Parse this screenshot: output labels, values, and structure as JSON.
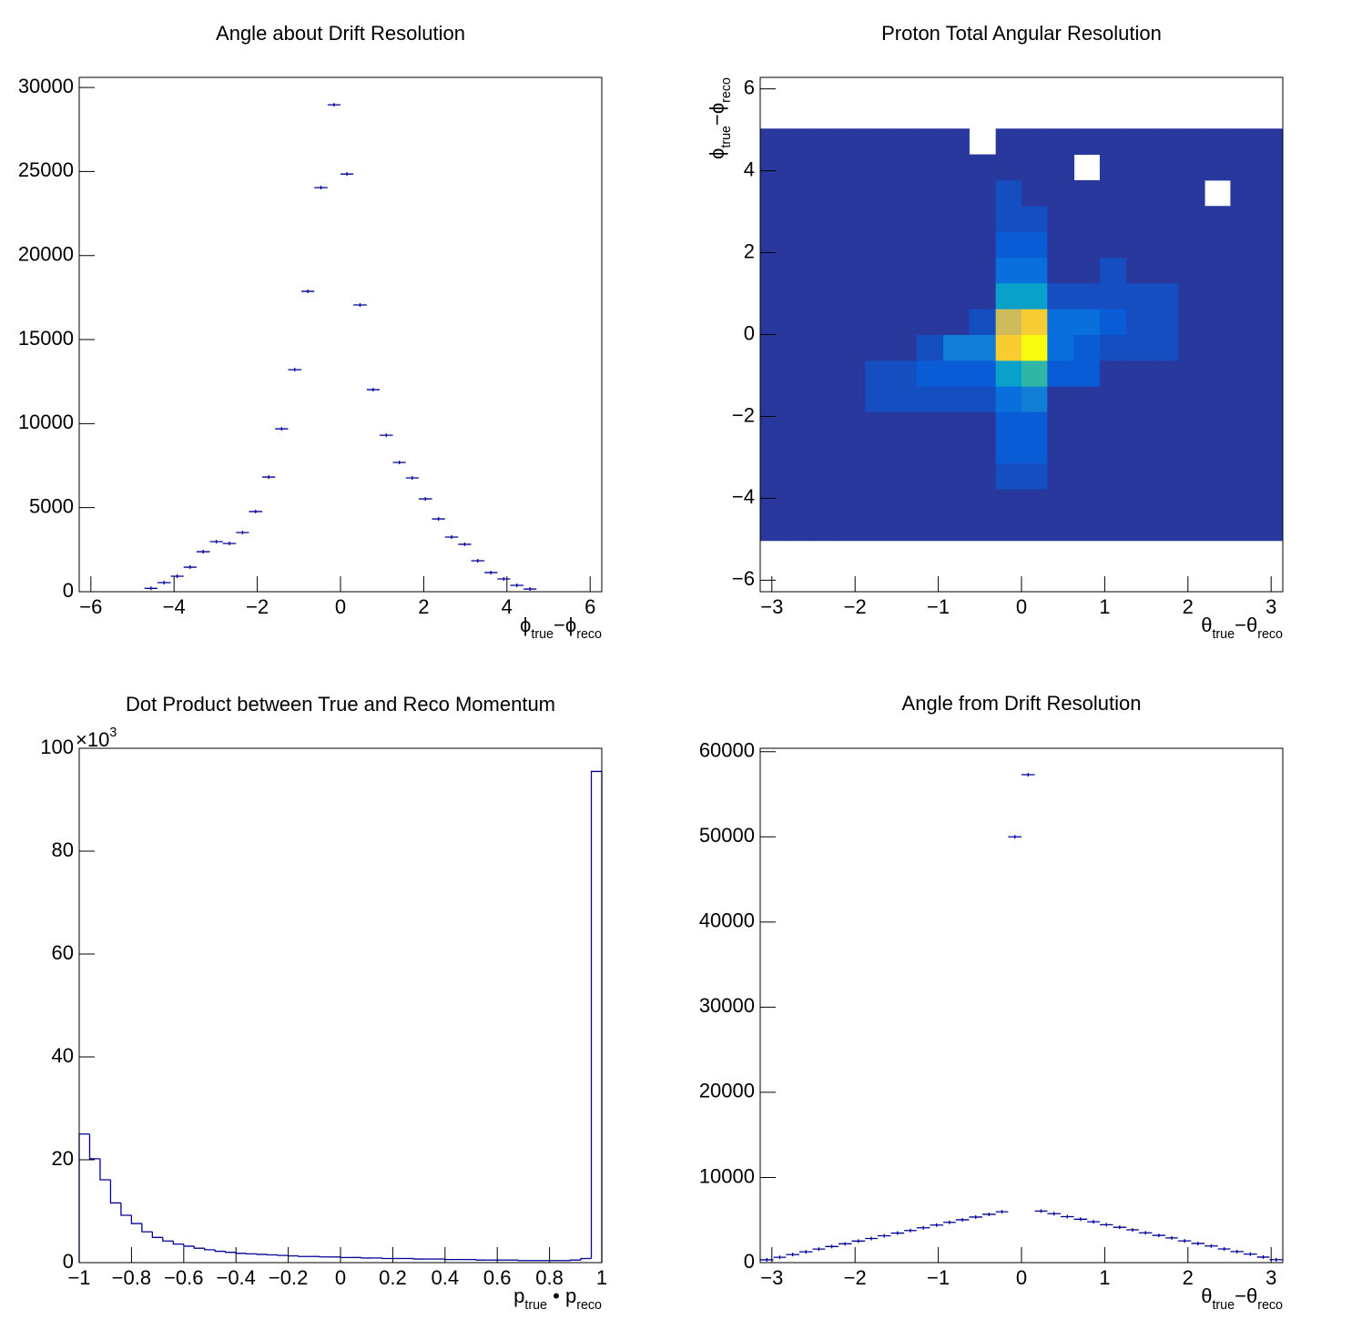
{
  "chart_data": [
    {
      "type": "histogram",
      "style": "markers",
      "title": "Angle about Drift Resolution",
      "bins": [
        -4.71,
        -4.4,
        -4.08,
        -3.77,
        -3.46,
        -3.14,
        -2.83,
        -2.51,
        -2.2,
        -1.88,
        -1.57,
        -1.26,
        -0.94,
        -0.63,
        -0.31,
        0,
        0.31,
        0.63,
        0.94,
        1.26,
        1.57,
        1.88,
        2.2,
        2.51,
        2.83,
        3.14,
        3.46,
        3.77,
        4.08,
        4.4,
        4.71
      ],
      "values": [
        200,
        540,
        920,
        1460,
        2380,
        2980,
        2870,
        3520,
        4770,
        6820,
        9690,
        13210,
        17870,
        24040,
        28970,
        24850,
        17060,
        12020,
        9310,
        7690,
        6770,
        5520,
        4330,
        3250,
        2820,
        1840,
        1140,
        760,
        380,
        160
      ],
      "color": "#000099",
      "xlim": [
        -6.28,
        6.28
      ],
      "ylim": [
        0,
        30600
      ],
      "xticks": [
        {
          "value": -6,
          "label": "−6"
        },
        {
          "value": -4,
          "label": "−4"
        },
        {
          "value": -2,
          "label": "−2"
        },
        0,
        2,
        4,
        6
      ],
      "yticks": [
        0,
        5000,
        10000,
        15000,
        20000,
        25000,
        30000
      ],
      "xlabel": [
        {
          "text": "ϕ"
        },
        {
          "text": "true",
          "sub": true
        },
        {
          "text": "−ϕ"
        },
        {
          "text": "reco",
          "sub": true
        }
      ]
    },
    {
      "type": "heatmap",
      "title": "Proton Total Angular Resolution",
      "xbins": [
        -3.14,
        -2.83,
        -2.51,
        -2.2,
        -1.88,
        -1.57,
        -1.26,
        -0.94,
        -0.63,
        -0.31,
        0,
        0.31,
        0.63,
        0.94,
        1.26,
        1.57,
        1.88,
        2.2,
        2.51,
        2.83,
        3.14
      ],
      "ybins": [
        -6.28,
        -5.65,
        -5.03,
        -4.4,
        -3.77,
        -3.14,
        -2.51,
        -1.88,
        -1.26,
        -0.63,
        0,
        0.63,
        1.26,
        1.88,
        2.51,
        3.14,
        3.77,
        4.4,
        5.03,
        5.65,
        6.28
      ],
      "z": [
        [
          0,
          0,
          0,
          0,
          0,
          0,
          0,
          0,
          0,
          0,
          0,
          0,
          0,
          0,
          0,
          0,
          0,
          0,
          0,
          0
        ],
        [
          0,
          0,
          0,
          0,
          0,
          0,
          0,
          0,
          0,
          0,
          0,
          0,
          0,
          0,
          0,
          0,
          0,
          0,
          0,
          0
        ],
        [
          3,
          3,
          3,
          3,
          3,
          3,
          3,
          3,
          3,
          3,
          3,
          3,
          3,
          3,
          3,
          3,
          3,
          3,
          3,
          3
        ],
        [
          3,
          3,
          3,
          3,
          3,
          3,
          3,
          3,
          3,
          3,
          3,
          3,
          3,
          3,
          3,
          3,
          3,
          3,
          3,
          3
        ],
        [
          3,
          3,
          3,
          3,
          3,
          3,
          3,
          3,
          3,
          8,
          8,
          3,
          3,
          3,
          3,
          3,
          3,
          3,
          3,
          3
        ],
        [
          3,
          3,
          3,
          3,
          3,
          3,
          3,
          3,
          3,
          11,
          11,
          3,
          3,
          3,
          3,
          3,
          3,
          3,
          3,
          3
        ],
        [
          3,
          3,
          3,
          3,
          3,
          3,
          3,
          3,
          3,
          11,
          11,
          3,
          3,
          3,
          3,
          3,
          3,
          3,
          3,
          3
        ],
        [
          3,
          3,
          3,
          3,
          8,
          8,
          8,
          8,
          8,
          17,
          22,
          3,
          3,
          3,
          3,
          3,
          3,
          3,
          3,
          3
        ],
        [
          3,
          3,
          3,
          3,
          8,
          8,
          11,
          11,
          11,
          35,
          48,
          11,
          11,
          3,
          3,
          3,
          3,
          3,
          3,
          3
        ],
        [
          3,
          3,
          3,
          3,
          3,
          3,
          8,
          22,
          22,
          86,
          100,
          17,
          11,
          8,
          8,
          8,
          3,
          3,
          3,
          3
        ],
        [
          3,
          3,
          3,
          3,
          3,
          3,
          3,
          3,
          8,
          73,
          86,
          17,
          17,
          11,
          8,
          8,
          3,
          3,
          3,
          3
        ],
        [
          3,
          3,
          3,
          3,
          3,
          3,
          3,
          3,
          3,
          35,
          35,
          8,
          8,
          8,
          8,
          8,
          3,
          3,
          3,
          3
        ],
        [
          3,
          3,
          3,
          3,
          3,
          3,
          3,
          3,
          3,
          17,
          17,
          3,
          3,
          8,
          3,
          3,
          3,
          3,
          3,
          3
        ],
        [
          3,
          3,
          3,
          3,
          3,
          3,
          3,
          3,
          3,
          11,
          11,
          3,
          3,
          3,
          3,
          3,
          3,
          3,
          3,
          3
        ],
        [
          3,
          3,
          3,
          3,
          3,
          3,
          3,
          3,
          3,
          8,
          8,
          3,
          3,
          3,
          3,
          3,
          3,
          3,
          3,
          3
        ],
        [
          3,
          3,
          3,
          3,
          3,
          3,
          3,
          3,
          3,
          8,
          3,
          3,
          3,
          3,
          3,
          3,
          3,
          0,
          3,
          3
        ],
        [
          3,
          3,
          3,
          3,
          3,
          3,
          3,
          3,
          3,
          3,
          3,
          3,
          0,
          3,
          3,
          3,
          3,
          3,
          3,
          3
        ],
        [
          3,
          3,
          3,
          3,
          3,
          3,
          3,
          3,
          0,
          3,
          3,
          3,
          3,
          3,
          3,
          3,
          3,
          3,
          3,
          3
        ],
        [
          0,
          0,
          0,
          0,
          0,
          0,
          0,
          0,
          0,
          0,
          0,
          0,
          0,
          0,
          0,
          0,
          0,
          0,
          0,
          0
        ],
        [
          0,
          0,
          0,
          0,
          0,
          0,
          0,
          0,
          0,
          0,
          0,
          0,
          0,
          0,
          0,
          0,
          0,
          0,
          0,
          0
        ]
      ],
      "palette": [
        "#352a87",
        "#0363e1",
        "#1485d4",
        "#06a7c6",
        "#38b99e",
        "#92bf73",
        "#d9ba56",
        "#fcce2e",
        "#f9fb0e"
      ],
      "xlim": [
        -3.14,
        3.14
      ],
      "ylim": [
        -6.28,
        6.28
      ],
      "xticks": [
        {
          "value": -3,
          "label": "−3"
        },
        {
          "value": -2,
          "label": "−2"
        },
        {
          "value": -1,
          "label": "−1"
        },
        0,
        1,
        2,
        3
      ],
      "yticks": [
        {
          "value": -6,
          "label": "−6"
        },
        {
          "value": -4,
          "label": "−4"
        },
        {
          "value": -2,
          "label": "−2"
        },
        0,
        2,
        4,
        6
      ],
      "xlabel": [
        {
          "text": "θ"
        },
        {
          "text": "true",
          "sub": true
        },
        {
          "text": "−θ"
        },
        {
          "text": "reco",
          "sub": true
        }
      ],
      "ylabel": [
        {
          "text": "ϕ"
        },
        {
          "text": "true",
          "sub": true
        },
        {
          "text": "−ϕ"
        },
        {
          "text": "reco",
          "sub": true
        }
      ]
    },
    {
      "type": "histogram",
      "style": "step",
      "title": "Dot Product between True and Reco Momentum",
      "bins": [
        -1,
        -0.96,
        -0.92,
        -0.88,
        -0.84,
        -0.8,
        -0.76,
        -0.72,
        -0.68,
        -0.64,
        -0.6,
        -0.56,
        -0.52,
        -0.48,
        -0.44,
        -0.4,
        -0.36,
        -0.32,
        -0.28,
        -0.24,
        -0.2,
        -0.16,
        -0.12,
        -0.08,
        -0.04,
        0,
        0.04,
        0.08,
        0.12,
        0.16,
        0.2,
        0.24,
        0.28,
        0.32,
        0.36,
        0.4,
        0.44,
        0.48,
        0.52,
        0.56,
        0.6,
        0.64,
        0.68,
        0.72,
        0.76,
        0.8,
        0.84,
        0.88,
        0.92,
        0.96,
        1
      ],
      "values": [
        25.0,
        20.2,
        16.1,
        11.6,
        9.2,
        7.6,
        6.0,
        4.9,
        4.2,
        3.6,
        3.2,
        2.8,
        2.5,
        2.2,
        2.0,
        1.8,
        1.7,
        1.6,
        1.5,
        1.4,
        1.3,
        1.2,
        1.2,
        1.1,
        1.1,
        1.0,
        1.0,
        0.9,
        0.9,
        0.8,
        0.8,
        0.8,
        0.7,
        0.7,
        0.7,
        0.6,
        0.6,
        0.6,
        0.5,
        0.5,
        0.5,
        0.5,
        0.4,
        0.4,
        0.4,
        0.4,
        0.4,
        0.5,
        0.8,
        95.5
      ],
      "color": "#000099",
      "xlim": [
        -1,
        1
      ],
      "ylim": [
        0,
        100
      ],
      "xticks": [
        {
          "value": -1,
          "label": "−1"
        },
        {
          "value": -0.8,
          "label": "−0.8"
        },
        {
          "value": -0.6,
          "label": "−0.6"
        },
        {
          "value": -0.4,
          "label": "−0.4"
        },
        {
          "value": -0.2,
          "label": "−0.2"
        },
        0,
        0.2,
        0.4,
        0.6,
        0.8,
        1
      ],
      "yticks": [
        0,
        20,
        40,
        60,
        80,
        100
      ],
      "yunit": [
        {
          "text": "×10"
        },
        {
          "text": "3",
          "sup": true
        }
      ],
      "xlabel": [
        {
          "text": "p"
        },
        {
          "text": "true",
          "sub": true
        },
        {
          "text": " • "
        },
        {
          "text": "p"
        },
        {
          "text": "reco",
          "sub": true
        }
      ]
    },
    {
      "type": "histogram",
      "style": "markers",
      "title": "Angle from Drift Resolution",
      "bins": [
        -3.14,
        -2.98,
        -2.83,
        -2.67,
        -2.51,
        -2.36,
        -2.2,
        -2.04,
        -1.88,
        -1.73,
        -1.57,
        -1.41,
        -1.26,
        -1.1,
        -0.94,
        -0.79,
        -0.63,
        -0.47,
        -0.31,
        -0.16,
        0,
        0.16,
        0.31,
        0.47,
        0.63,
        0.79,
        0.94,
        1.1,
        1.26,
        1.41,
        1.57,
        1.73,
        1.88,
        2.04,
        2.2,
        2.36,
        2.51,
        2.67,
        2.83,
        2.98,
        3.14
      ],
      "values": [
        330,
        630,
        950,
        1270,
        1590,
        1890,
        2210,
        2530,
        2830,
        3150,
        3470,
        3770,
        4090,
        4410,
        4730,
        5030,
        5350,
        5670,
        5970,
        50000,
        57300,
        6050,
        5750,
        5400,
        5100,
        4800,
        4450,
        4150,
        3850,
        3500,
        3200,
        2900,
        2550,
        2250,
        1950,
        1600,
        1300,
        1000,
        650,
        350
      ],
      "color": "#000099",
      "xlim": [
        -3.14,
        3.14
      ],
      "ylim": [
        0,
        60400
      ],
      "xticks": [
        {
          "value": -3,
          "label": "−3"
        },
        {
          "value": -2,
          "label": "−2"
        },
        {
          "value": -1,
          "label": "−1"
        },
        0,
        1,
        2,
        3
      ],
      "yticks": [
        0,
        10000,
        20000,
        30000,
        40000,
        50000,
        60000
      ],
      "xlabel": [
        {
          "text": "θ"
        },
        {
          "text": "true",
          "sub": true
        },
        {
          "text": "−θ"
        },
        {
          "text": "reco",
          "sub": true
        }
      ]
    }
  ]
}
